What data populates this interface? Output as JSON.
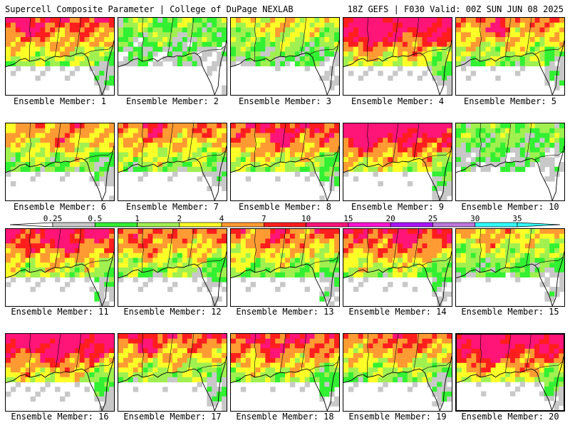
{
  "header": {
    "left": "Supercell Composite Parameter | College of DuPage NEXLAB",
    "right": "18Z GEFS | F030 Valid: 00Z SUN JUN 08 2025"
  },
  "colorbar": {
    "ticks": [
      "0.25",
      "0.5",
      "1",
      "2",
      "4",
      "7",
      "10",
      "15",
      "20",
      "25",
      "30",
      "35"
    ],
    "colors": [
      "#c8c8c8",
      "#32f032",
      "#a0f050",
      "#ffff28",
      "#ff9b32",
      "#ff1e1e",
      "#ff1478",
      "#ff14d2",
      "#aa14ff",
      "#be78dc",
      "#32ffff"
    ]
  },
  "panels": [
    {
      "label": "Ensemble Member: 1",
      "intensity": 0.85
    },
    {
      "label": "Ensemble Member: 2",
      "intensity": 0.4
    },
    {
      "label": "Ensemble Member: 3",
      "intensity": 0.55
    },
    {
      "label": "Ensemble Member: 4",
      "intensity": 1.0
    },
    {
      "label": "Ensemble Member: 5",
      "intensity": 0.75
    },
    {
      "label": "Ensemble Member: 6",
      "intensity": 0.7
    },
    {
      "label": "Ensemble Member: 7",
      "intensity": 0.75
    },
    {
      "label": "Ensemble Member: 8",
      "intensity": 0.85
    },
    {
      "label": "Ensemble Member: 9",
      "intensity": 1.0
    },
    {
      "label": "Ensemble Member: 10",
      "intensity": 0.4
    },
    {
      "label": "Ensemble Member: 11",
      "intensity": 0.9
    },
    {
      "label": "Ensemble Member: 12",
      "intensity": 0.75
    },
    {
      "label": "Ensemble Member: 13",
      "intensity": 0.75
    },
    {
      "label": "Ensemble Member: 14",
      "intensity": 0.85
    },
    {
      "label": "Ensemble Member: 15",
      "intensity": 0.6
    },
    {
      "label": "Ensemble Member: 16",
      "intensity": 1.0
    },
    {
      "label": "Ensemble Member: 17",
      "intensity": 0.8
    },
    {
      "label": "Ensemble Member: 18",
      "intensity": 0.85
    },
    {
      "label": "Ensemble Member: 19",
      "intensity": 0.75
    },
    {
      "label": "Ensemble Member: 20",
      "intensity": 1.0
    }
  ]
}
